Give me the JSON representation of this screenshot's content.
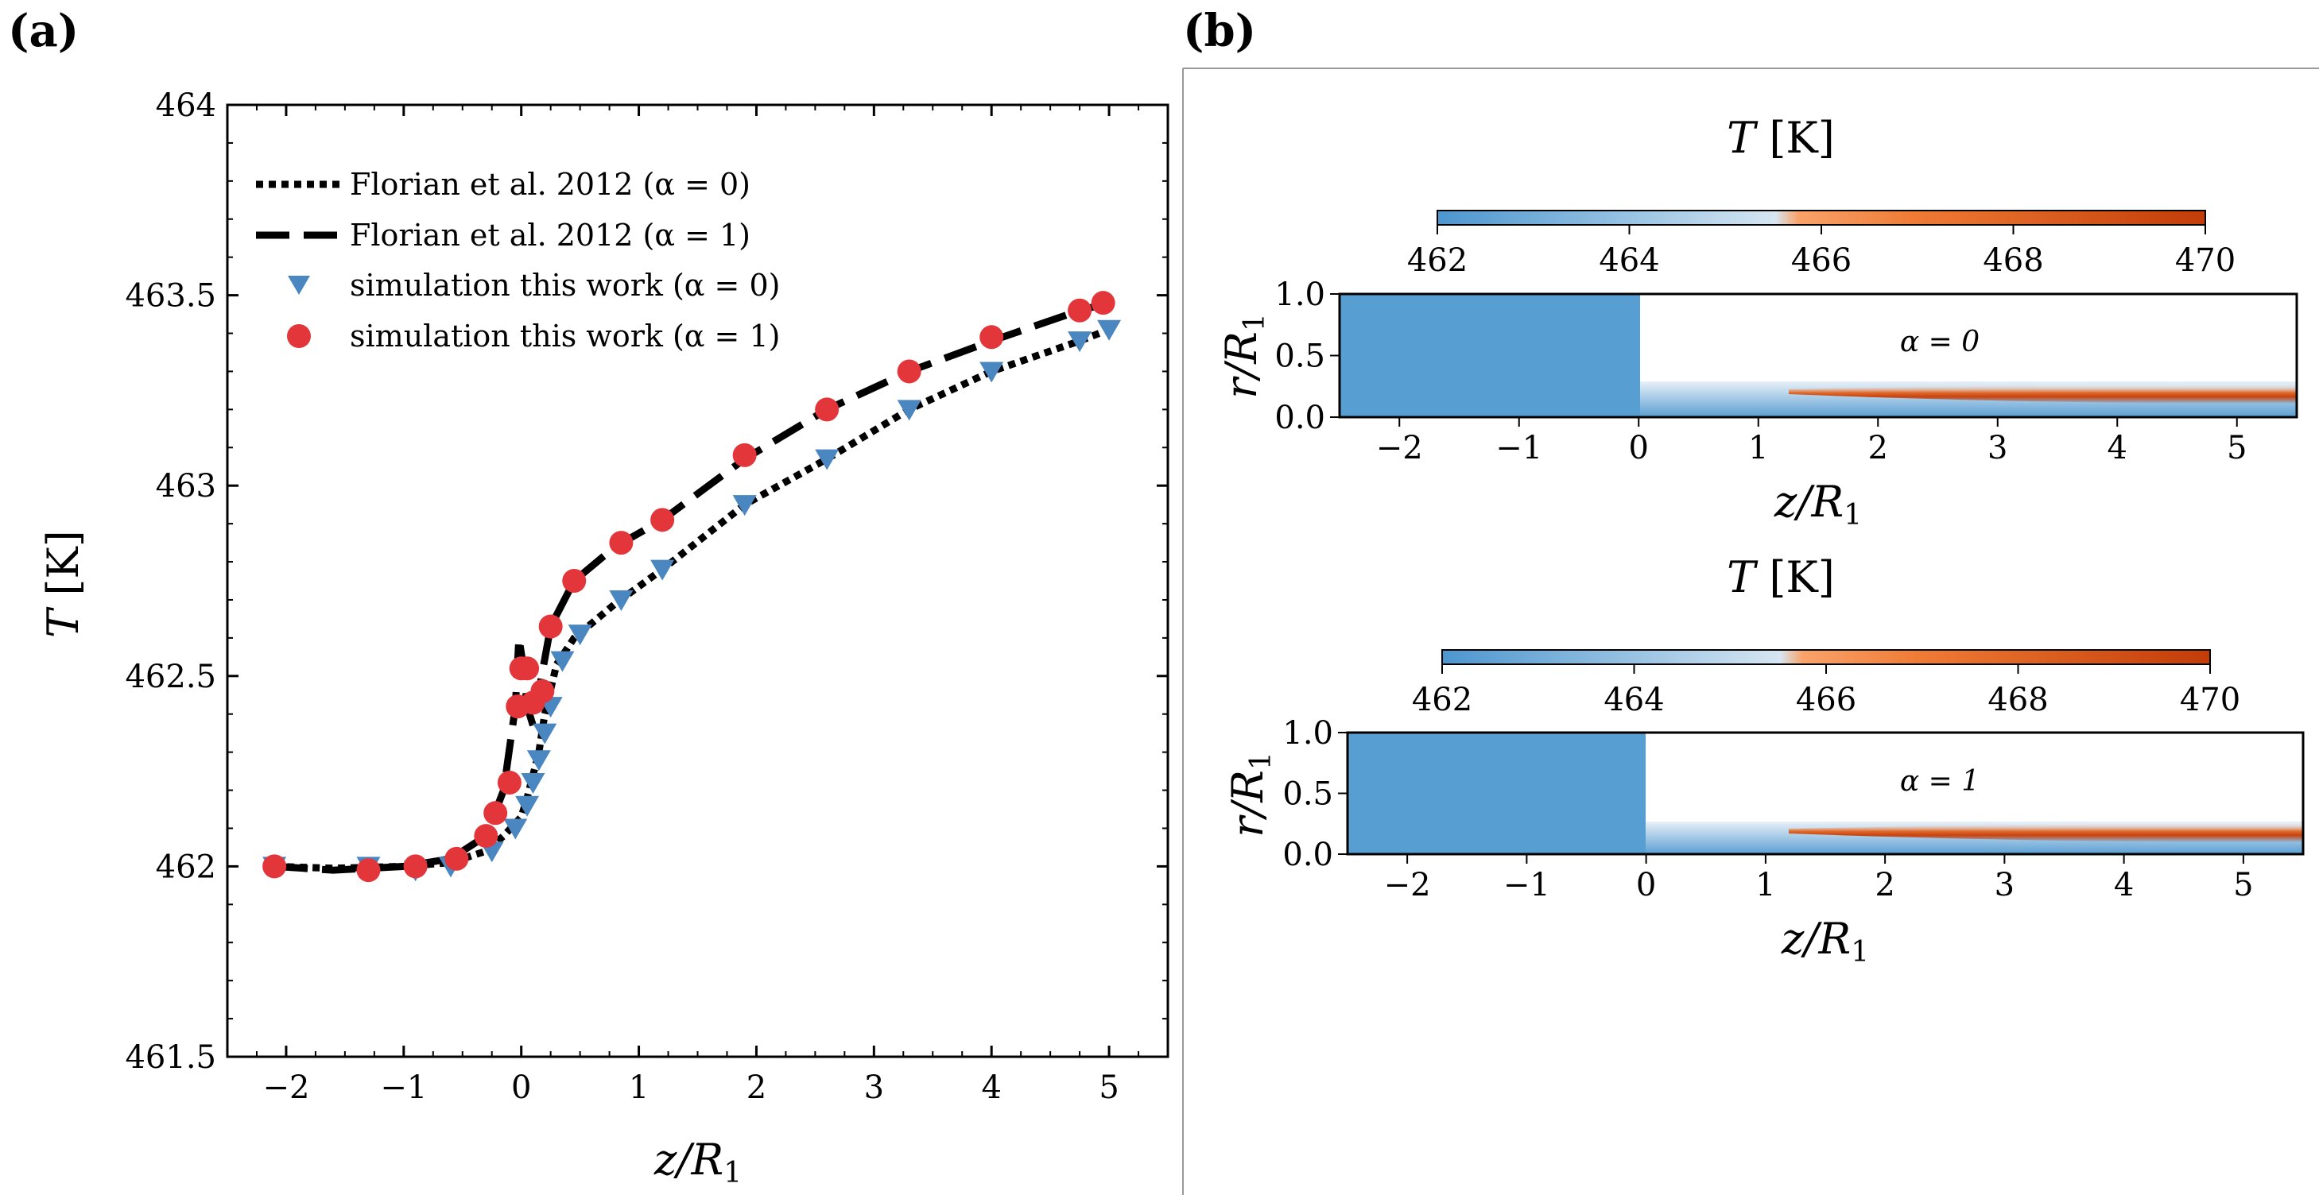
{
  "panel_labels": {
    "a": "(a)",
    "b": "(b)"
  },
  "colors": {
    "blue_marker": "#4a86c0",
    "red_marker": "#e3363a",
    "line": "#000000",
    "cold": "#5b9fd3",
    "hot": "#c84010"
  },
  "chart_data": [
    {
      "id": "panel-a",
      "type": "scatter",
      "title": "",
      "xlabel": "z/R1",
      "ylabel": "T [K]",
      "xlim": [
        -2.5,
        5.5
      ],
      "ylim": [
        461.5,
        464
      ],
      "xticks": [
        -2,
        -1,
        0,
        1,
        2,
        3,
        4,
        5
      ],
      "xtick_labels": [
        "−2",
        "−1",
        "0",
        "1",
        "2",
        "3",
        "4",
        "5"
      ],
      "yticks": [
        461.5,
        462,
        462.5,
        463,
        463.5,
        464
      ],
      "ytick_labels": [
        "461.5",
        "462",
        "462.5",
        "463",
        "463.5",
        "464"
      ],
      "legend_position": "upper-left",
      "series": [
        {
          "name": "Florian et al. 2012 (α = 0)",
          "kind": "line-dotted",
          "x": [
            -2.1,
            -1.6,
            -1.0,
            -0.6,
            -0.3,
            -0.15,
            0.0,
            0.05,
            0.1,
            0.15,
            0.2,
            0.3,
            0.45,
            0.8,
            1.2,
            1.9,
            2.6,
            3.3,
            4.0,
            4.75,
            5.0
          ],
          "y": [
            462.0,
            461.995,
            462.0,
            462.01,
            462.04,
            462.08,
            462.13,
            462.18,
            462.24,
            462.3,
            462.4,
            462.53,
            462.6,
            462.69,
            462.78,
            462.95,
            463.07,
            463.2,
            463.3,
            463.38,
            463.41
          ]
        },
        {
          "name": "Florian et al. 2012 (α = 1)",
          "kind": "line-dashed",
          "x": [
            -2.1,
            -1.6,
            -1.0,
            -0.6,
            -0.3,
            -0.15,
            -0.05,
            -0.02,
            0.02,
            0.05,
            0.1,
            0.15,
            0.25,
            0.45,
            0.8,
            1.2,
            1.9,
            2.6,
            3.3,
            4.0,
            4.75,
            5.0
          ],
          "y": [
            462.0,
            461.99,
            462.0,
            462.02,
            462.08,
            462.2,
            462.42,
            462.6,
            462.52,
            462.42,
            462.37,
            462.46,
            462.63,
            462.75,
            462.84,
            462.91,
            463.07,
            463.2,
            463.3,
            463.38,
            463.46,
            463.48
          ]
        },
        {
          "name": "simulation this work (α = 0)",
          "kind": "markers-triangle",
          "x": [
            -2.1,
            -1.3,
            -0.9,
            -0.6,
            -0.25,
            -0.05,
            0.05,
            0.1,
            0.15,
            0.2,
            0.25,
            0.35,
            0.5,
            0.85,
            1.2,
            1.9,
            2.6,
            3.3,
            4.0,
            4.75,
            5.0
          ],
          "y": [
            462.0,
            462.0,
            461.99,
            462.0,
            462.04,
            462.1,
            462.16,
            462.22,
            462.28,
            462.35,
            462.42,
            462.54,
            462.61,
            462.7,
            462.78,
            462.95,
            463.07,
            463.2,
            463.3,
            463.38,
            463.41
          ]
        },
        {
          "name": "simulation this work (α = 1)",
          "kind": "markers-circle",
          "x": [
            -2.1,
            -1.3,
            -0.9,
            -0.55,
            -0.3,
            -0.22,
            -0.1,
            -0.03,
            0.0,
            0.05,
            0.1,
            0.18,
            0.25,
            0.45,
            0.85,
            1.2,
            1.9,
            2.6,
            3.3,
            4.0,
            4.75,
            4.95
          ],
          "y": [
            462.0,
            461.99,
            462.0,
            462.02,
            462.08,
            462.14,
            462.22,
            462.42,
            462.52,
            462.52,
            462.43,
            462.46,
            462.63,
            462.75,
            462.85,
            462.91,
            463.08,
            463.2,
            463.3,
            463.39,
            463.46,
            463.48
          ]
        }
      ]
    },
    {
      "id": "panel-b-top",
      "type": "heatmap",
      "colorbar_title": "T [K]",
      "colorbar_range": [
        462,
        470
      ],
      "colorbar_ticks": [
        "462",
        "464",
        "466",
        "468",
        "470"
      ],
      "xlabel": "z/R1",
      "ylabel": "r/R1",
      "xlim": [
        -2.5,
        5.5
      ],
      "ylim": [
        0,
        1
      ],
      "xtick_labels": [
        "−2",
        "−1",
        "0",
        "1",
        "2",
        "3",
        "4",
        "5"
      ],
      "ytick_labels": [
        "0.0",
        "0.5",
        "1.0"
      ],
      "annotation": "α = 0"
    },
    {
      "id": "panel-b-bottom",
      "type": "heatmap",
      "colorbar_title": "T [K]",
      "colorbar_range": [
        462,
        470
      ],
      "colorbar_ticks": [
        "462",
        "464",
        "466",
        "468",
        "470"
      ],
      "xlabel": "z/R1",
      "ylabel": "r/R1",
      "xlim": [
        -2.5,
        5.5
      ],
      "ylim": [
        0,
        1
      ],
      "xtick_labels": [
        "−2",
        "−1",
        "0",
        "1",
        "2",
        "3",
        "4",
        "5"
      ],
      "ytick_labels": [
        "0.0",
        "0.5",
        "1.0"
      ],
      "annotation": "α = 1"
    }
  ]
}
